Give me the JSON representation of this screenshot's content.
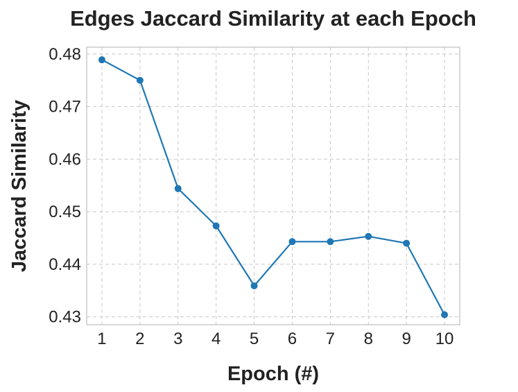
{
  "chart_data": {
    "type": "line",
    "title": "Edges Jaccard Similarity at each Epoch",
    "xlabel": "Epoch (#)",
    "ylabel": "Jaccard Similarity",
    "x": [
      1,
      2,
      3,
      4,
      5,
      6,
      7,
      8,
      9,
      10
    ],
    "x_tick_labels": [
      "1",
      "2",
      "3",
      "4",
      "5",
      "6",
      "7",
      "8",
      "9",
      "10"
    ],
    "y_ticks": [
      0.43,
      0.44,
      0.45,
      0.46,
      0.47,
      0.48
    ],
    "y_tick_labels": [
      "0.43",
      "0.44",
      "0.45",
      "0.46",
      "0.47",
      "0.48"
    ],
    "xlim": [
      0.6,
      10.4
    ],
    "ylim": [
      0.4285,
      0.4813
    ],
    "grid": true,
    "series": [
      {
        "color": "#1f77b4",
        "marker": "circle",
        "values": [
          0.4789,
          0.475,
          0.4544,
          0.4473,
          0.4359,
          0.4443,
          0.4443,
          0.4453,
          0.444,
          0.4304
        ]
      }
    ]
  }
}
